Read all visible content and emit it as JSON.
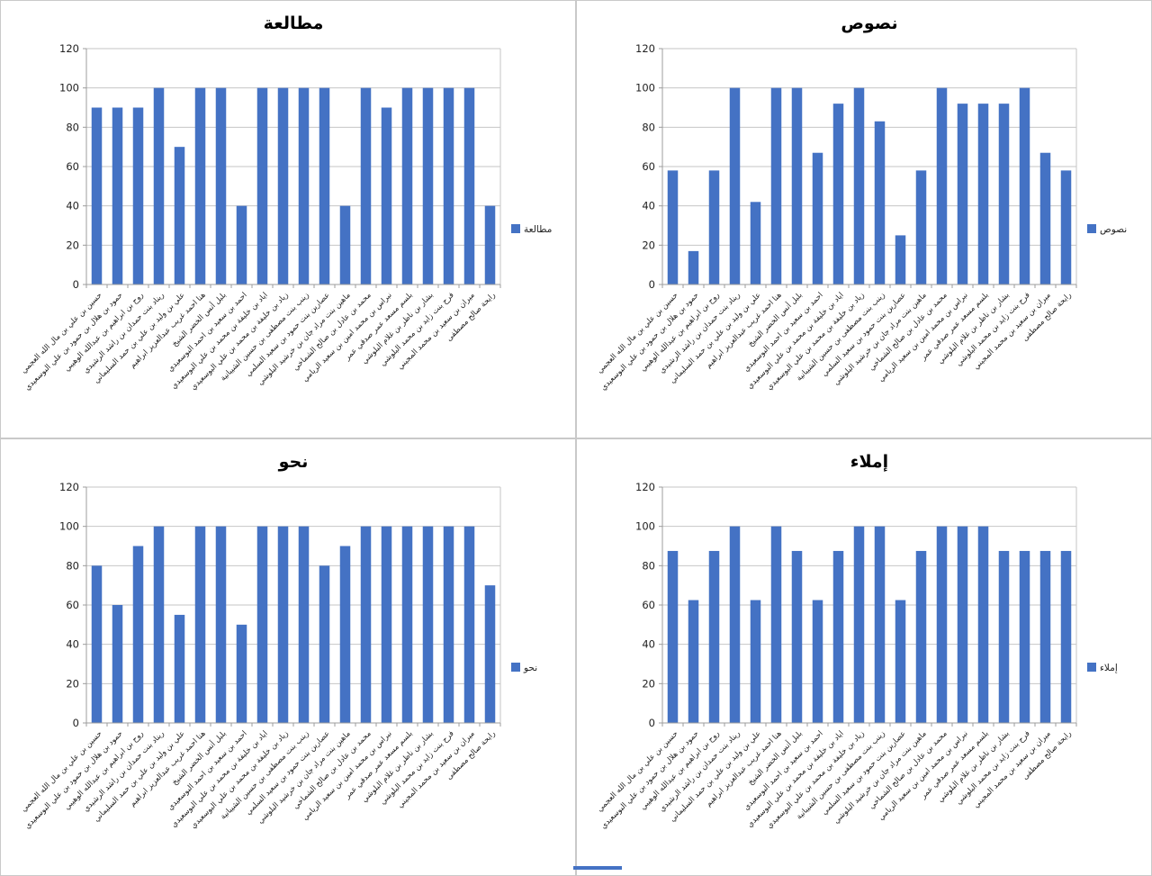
{
  "colors": {
    "bar": "#4472C4",
    "gridline": "#C6C6C6",
    "axis": "#9C9C9C",
    "tick_text": "#222222",
    "title_text": "#000000",
    "panel_border": "#C9C9C9",
    "background": "#FFFFFF"
  },
  "y_axis": {
    "ticks": [
      0,
      20,
      40,
      60,
      80,
      100,
      120
    ],
    "max": 120
  },
  "chart_data": [
    {
      "type": "bar",
      "title": "مطالعة",
      "legend_label": "مطالعة",
      "legend_position": "right",
      "grid": true,
      "bar_color": "#4472C4",
      "ylim": [
        0,
        120
      ],
      "yticks": [
        0,
        20,
        40,
        60,
        80,
        100,
        120
      ],
      "categories": [
        "حسين بن علي بن مال الله العجمي",
        "حمود بن هلال بن حمود بن علي البوسعيدي",
        "روح بن ابراهيم بن عبدالله الوهيبي",
        "ريناد بنت حمدان بن راشد الرشيدي",
        "علي بن وليد بن علي بن حمد السليماني",
        "هنا احمد غريب عبدالعزيز ابراهيم",
        "بلبل أنس الخضر الشيخ",
        "احمد بن سعيد بن احمد البوسعيدي",
        "اياد بن خليفة بن محمد بن علي البوسعيدي",
        "زياد بن خليفة بن محمد بن علي البوسعيدي",
        "زينب بنت مصطفى بن حسين الشيبانية",
        "عصارين بنت حمود بن سعيد السلمي",
        "ماهين بنت مراد جان بن خرشيد البلوشي",
        "محمد بن عادل بن صالح الشماخي",
        "نبراس بن محمد امين بن سعيد الريامي",
        "بلسم مسعد عمر صدقي عمر",
        "بشار بن ناظر بن غلام البلوشي",
        "فرح بنت زايد بن محمد البلوشي",
        "ميران بن سعيد بن محمد المجيني",
        "رايحة صالح مصطفى"
      ],
      "values": [
        90,
        90,
        90,
        100,
        70,
        100,
        100,
        40,
        100,
        100,
        100,
        100,
        40,
        100,
        90,
        100,
        100,
        100,
        100,
        40
      ]
    },
    {
      "type": "bar",
      "title": "نصوص",
      "legend_label": "نصوص",
      "legend_position": "right",
      "grid": true,
      "bar_color": "#4472C4",
      "ylim": [
        0,
        120
      ],
      "yticks": [
        0,
        20,
        40,
        60,
        80,
        100,
        120
      ],
      "categories": [
        "حسين بن علي بن مال الله العجمي",
        "حمود بن هلال بن حمود بن علي البوسعيدي",
        "روح بن ابراهيم بن عبدالله الوهيبي",
        "ريناد بنت حمدان بن راشد الرشيدي",
        "علي بن وليد بن علي بن حمد السليماني",
        "هنا احمد غريب عبدالعزيز ابراهيم",
        "بلبل أنس الخضر الشيخ",
        "احمد بن سعيد بن احمد البوسعيدي",
        "اياد بن خليفة بن محمد بن علي البوسعيدي",
        "زياد بن خليفة بن محمد بن علي البوسعيدي",
        "زينب بنت مصطفى بن حسين الشيبانية",
        "عصارين بنت حمود بن سعيد السلمي",
        "ماهين بنت مراد جان بن خرشيد البلوشي",
        "محمد بن عادل بن صالح الشماخي",
        "نبراس بن محمد امين بن سعيد الريامي",
        "بلسم مسعد عمر صدقي عمر",
        "بشار بن ناظر بن غلام البلوشي",
        "فرح بنت زايد بن محمد البلوشي",
        "ميران بن سعيد بن محمد المجيني",
        "رايحة صالح مصطفى"
      ],
      "values": [
        58,
        17,
        58,
        100,
        42,
        100,
        100,
        67,
        92,
        100,
        83,
        25,
        58,
        100,
        92,
        92,
        92,
        100,
        67,
        58
      ]
    },
    {
      "type": "bar",
      "title": "نحو",
      "legend_label": "نحو",
      "legend_position": "right",
      "grid": true,
      "bar_color": "#4472C4",
      "ylim": [
        0,
        120
      ],
      "yticks": [
        0,
        20,
        40,
        60,
        80,
        100,
        120
      ],
      "categories": [
        "حسين بن علي بن مال الله العجمي",
        "حمود بن هلال بن حمود بن علي البوسعيدي",
        "روح بن ابراهيم بن عبدالله الوهيبي",
        "ريناد بنت حمدان بن راشد الرشيدي",
        "علي بن وليد بن علي بن حمد السليماني",
        "هنا احمد غريب عبدالعزيز ابراهيم",
        "بلبل أنس الخضر الشيخ",
        "احمد بن سعيد بن احمد البوسعيدي",
        "اياد بن خليفة بن محمد بن علي البوسعيدي",
        "زياد بن خليفة بن محمد بن علي البوسعيدي",
        "زينب بنت مصطفى بن حسين الشيبانية",
        "عصارين بنت حمود بن سعيد السلمي",
        "ماهين بنت مراد جان بن خرشيد البلوشي",
        "محمد بن عادل بن صالح الشماخي",
        "نبراس بن محمد امين بن سعيد الريامي",
        "بلسم مسعد عمر صدقي عمر",
        "بشار بن ناظر بن غلام البلوشي",
        "فرح بنت زايد بن محمد البلوشي",
        "ميران بن سعيد بن محمد المجيني",
        "رايحة صالح مصطفى"
      ],
      "values": [
        80,
        60,
        90,
        100,
        55,
        100,
        100,
        50,
        100,
        100,
        100,
        80,
        90,
        100,
        100,
        100,
        100,
        100,
        100,
        70
      ]
    },
    {
      "type": "bar",
      "title": "إملاء",
      "legend_label": "إملاء",
      "legend_position": "right",
      "grid": true,
      "bar_color": "#4472C4",
      "ylim": [
        0,
        120
      ],
      "yticks": [
        0,
        20,
        40,
        60,
        80,
        100,
        120
      ],
      "categories": [
        "حسين بن علي بن مال الله العجمي",
        "حمود بن هلال بن حمود بن علي البوسعيدي",
        "روح بن ابراهيم بن عبدالله الوهيبي",
        "ريناد بنت حمدان بن راشد الرشيدي",
        "علي بن وليد بن علي بن حمد السليماني",
        "هنا احمد غريب عبدالعزيز ابراهيم",
        "بلبل أنس الخضر الشيخ",
        "احمد بن سعيد بن احمد البوسعيدي",
        "اياد بن خليفة بن محمد بن علي البوسعيدي",
        "زياد بن خليفة بن محمد بن علي البوسعيدي",
        "زينب بنت مصطفى بن حسين الشيبانية",
        "عصارين بنت حمود بن سعيد السلمي",
        "ماهين بنت مراد جان بن خرشيد البلوشي",
        "محمد بن عادل بن صالح الشماخي",
        "نبراس بن محمد امين بن سعيد الريامي",
        "بلسم مسعد عمر صدقي عمر",
        "بشار بن ناظر بن غلام البلوشي",
        "فرح بنت زايد بن محمد البلوشي",
        "ميران بن سعيد بن محمد المجيني",
        "رايحة صالح مصطفى"
      ],
      "values": [
        87.5,
        62.5,
        87.5,
        100,
        62.5,
        100,
        87.5,
        62.5,
        87.5,
        100,
        100,
        62.5,
        87.5,
        100,
        100,
        100,
        87.5,
        87.5,
        87.5,
        87.5
      ]
    }
  ]
}
